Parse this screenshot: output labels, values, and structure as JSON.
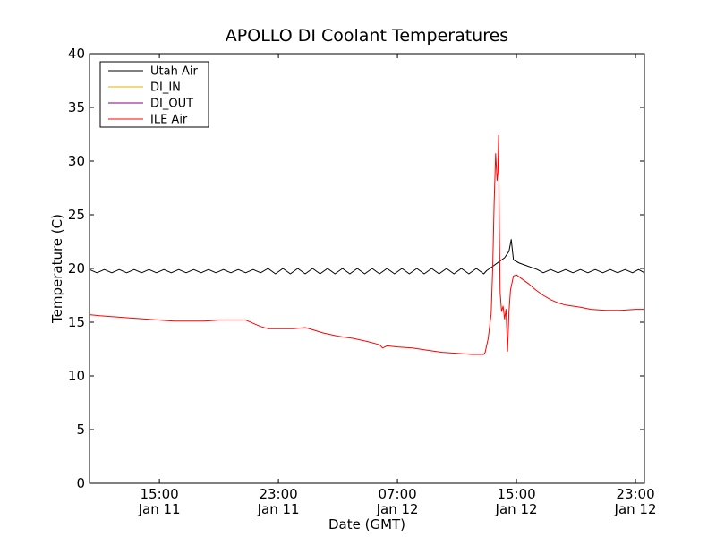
{
  "chart_data": {
    "type": "line",
    "title": "APOLLO DI Coolant Temperatures",
    "xlabel": "Date (GMT)",
    "ylabel": "Temperature (C)",
    "ylim": [
      0,
      40
    ],
    "yticks": [
      0,
      5,
      10,
      15,
      20,
      25,
      30,
      35,
      40
    ],
    "xlim_hours": [
      10.3,
      47.6
    ],
    "xticks": [
      {
        "hour": 15,
        "time": "15:00",
        "date": "Jan 11"
      },
      {
        "hour": 23,
        "time": "23:00",
        "date": "Jan 11"
      },
      {
        "hour": 31,
        "time": "07:00",
        "date": "Jan 12"
      },
      {
        "hour": 39,
        "time": "15:00",
        "date": "Jan 12"
      },
      {
        "hour": 47,
        "time": "23:00",
        "date": "Jan 12"
      }
    ],
    "x_units": "hours since 2000-01-11 00:00 GMT",
    "legend_position": "top-left",
    "series": [
      {
        "name": "Utah Air",
        "color": "#000000",
        "points": [
          [
            10.3,
            19.9
          ],
          [
            10.8,
            19.6
          ],
          [
            11.3,
            19.9
          ],
          [
            11.8,
            19.6
          ],
          [
            12.3,
            19.9
          ],
          [
            12.8,
            19.6
          ],
          [
            13.3,
            19.9
          ],
          [
            13.8,
            19.6
          ],
          [
            14.3,
            19.9
          ],
          [
            14.8,
            19.6
          ],
          [
            15.3,
            19.9
          ],
          [
            15.8,
            19.6
          ],
          [
            16.3,
            19.9
          ],
          [
            16.8,
            19.6
          ],
          [
            17.3,
            19.9
          ],
          [
            17.8,
            19.6
          ],
          [
            18.3,
            19.9
          ],
          [
            18.8,
            19.6
          ],
          [
            19.3,
            19.9
          ],
          [
            19.8,
            19.6
          ],
          [
            20.3,
            19.9
          ],
          [
            20.8,
            19.6
          ],
          [
            21.3,
            19.9
          ],
          [
            21.8,
            19.6
          ],
          [
            22.3,
            20.0
          ],
          [
            22.8,
            19.5
          ],
          [
            23.3,
            20.0
          ],
          [
            23.8,
            19.5
          ],
          [
            24.3,
            20.0
          ],
          [
            24.8,
            19.5
          ],
          [
            25.3,
            20.0
          ],
          [
            25.8,
            19.5
          ],
          [
            26.3,
            20.0
          ],
          [
            26.8,
            19.5
          ],
          [
            27.3,
            20.0
          ],
          [
            27.8,
            19.5
          ],
          [
            28.3,
            20.0
          ],
          [
            28.8,
            19.5
          ],
          [
            29.3,
            20.0
          ],
          [
            29.8,
            19.5
          ],
          [
            30.3,
            20.0
          ],
          [
            30.8,
            19.5
          ],
          [
            31.3,
            20.0
          ],
          [
            31.8,
            19.5
          ],
          [
            32.3,
            20.0
          ],
          [
            32.8,
            19.5
          ],
          [
            33.3,
            20.0
          ],
          [
            33.8,
            19.5
          ],
          [
            34.3,
            20.0
          ],
          [
            34.8,
            19.5
          ],
          [
            35.3,
            20.0
          ],
          [
            35.8,
            19.5
          ],
          [
            36.3,
            20.0
          ],
          [
            36.8,
            19.5
          ],
          [
            37.0,
            19.8
          ],
          [
            37.4,
            20.2
          ],
          [
            37.8,
            20.6
          ],
          [
            38.2,
            21.0
          ],
          [
            38.5,
            21.6
          ],
          [
            38.65,
            22.7
          ],
          [
            38.8,
            20.8
          ],
          [
            39.2,
            20.5
          ],
          [
            39.6,
            20.3
          ],
          [
            40.0,
            20.1
          ],
          [
            40.4,
            19.9
          ],
          [
            40.8,
            19.6
          ],
          [
            41.3,
            19.9
          ],
          [
            41.8,
            19.6
          ],
          [
            42.3,
            19.9
          ],
          [
            42.8,
            19.6
          ],
          [
            43.3,
            19.9
          ],
          [
            43.8,
            19.6
          ],
          [
            44.3,
            19.9
          ],
          [
            44.8,
            19.6
          ],
          [
            45.3,
            19.9
          ],
          [
            45.8,
            19.6
          ],
          [
            46.3,
            19.9
          ],
          [
            46.8,
            19.6
          ],
          [
            47.2,
            19.9
          ],
          [
            47.6,
            19.6
          ]
        ]
      },
      {
        "name": "DI_IN",
        "color": "#e8b000",
        "points": []
      },
      {
        "name": "DI_OUT",
        "color": "#800080",
        "points": []
      },
      {
        "name": "ILE Air",
        "color": "#ff0000",
        "points": [
          [
            10.3,
            15.7
          ],
          [
            11.0,
            15.6
          ],
          [
            12.0,
            15.5
          ],
          [
            13.0,
            15.4
          ],
          [
            14.0,
            15.3
          ],
          [
            15.0,
            15.2
          ],
          [
            16.0,
            15.1
          ],
          [
            17.0,
            15.1
          ],
          [
            18.0,
            15.1
          ],
          [
            19.0,
            15.2
          ],
          [
            20.0,
            15.2
          ],
          [
            20.8,
            15.2
          ],
          [
            21.3,
            14.9
          ],
          [
            21.8,
            14.6
          ],
          [
            22.3,
            14.4
          ],
          [
            23.0,
            14.4
          ],
          [
            24.0,
            14.4
          ],
          [
            24.8,
            14.5
          ],
          [
            25.3,
            14.3
          ],
          [
            26.0,
            14.0
          ],
          [
            27.0,
            13.7
          ],
          [
            28.0,
            13.5
          ],
          [
            29.0,
            13.2
          ],
          [
            29.8,
            12.9
          ],
          [
            30.0,
            12.6
          ],
          [
            30.3,
            12.8
          ],
          [
            31.0,
            12.7
          ],
          [
            32.0,
            12.6
          ],
          [
            33.0,
            12.4
          ],
          [
            34.0,
            12.2
          ],
          [
            35.0,
            12.1
          ],
          [
            36.0,
            12.0
          ],
          [
            36.8,
            12.0
          ],
          [
            36.9,
            12.2
          ],
          [
            37.1,
            13.5
          ],
          [
            37.3,
            15.8
          ],
          [
            37.4,
            20.0
          ],
          [
            37.5,
            26.0
          ],
          [
            37.6,
            30.7
          ],
          [
            37.7,
            28.2
          ],
          [
            37.75,
            29.0
          ],
          [
            37.8,
            32.4
          ],
          [
            37.85,
            24.0
          ],
          [
            37.9,
            17.8
          ],
          [
            38.0,
            16.0
          ],
          [
            38.1,
            16.5
          ],
          [
            38.2,
            15.3
          ],
          [
            38.3,
            16.2
          ],
          [
            38.4,
            12.3
          ],
          [
            38.5,
            16.0
          ],
          [
            38.6,
            18.0
          ],
          [
            38.8,
            19.3
          ],
          [
            39.0,
            19.4
          ],
          [
            39.3,
            19.1
          ],
          [
            39.8,
            18.6
          ],
          [
            40.3,
            18.0
          ],
          [
            40.8,
            17.5
          ],
          [
            41.3,
            17.1
          ],
          [
            41.8,
            16.8
          ],
          [
            42.3,
            16.6
          ],
          [
            42.8,
            16.5
          ],
          [
            43.3,
            16.4
          ],
          [
            44.0,
            16.2
          ],
          [
            45.0,
            16.1
          ],
          [
            46.0,
            16.1
          ],
          [
            47.0,
            16.2
          ],
          [
            47.6,
            16.2
          ]
        ]
      }
    ]
  }
}
